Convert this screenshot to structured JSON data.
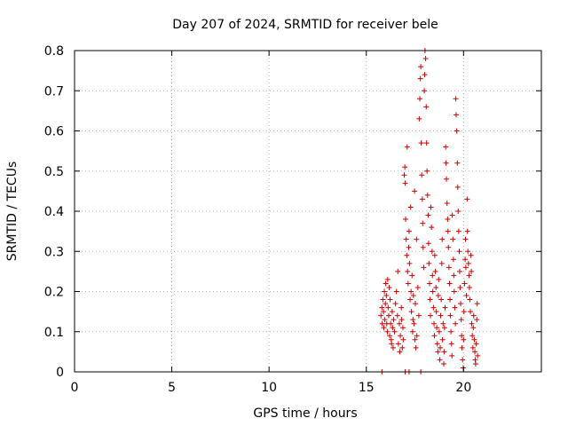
{
  "chart_data": {
    "type": "scatter",
    "title": "Day 207 of 2024, SRMTID for receiver bele",
    "xlabel": "GPS time / hours",
    "ylabel": "SRMTID / TECUs",
    "xlim": [
      0,
      24
    ],
    "ylim": [
      0,
      0.8
    ],
    "xticks": [
      0,
      5,
      10,
      15,
      20
    ],
    "xtick_labels": [
      "0",
      "5",
      "10",
      "15",
      "20"
    ],
    "yticks": [
      0,
      0.1,
      0.2,
      0.3,
      0.4,
      0.5,
      0.6,
      0.7,
      0.8
    ],
    "ytick_labels": [
      "0",
      "0.1",
      "0.2",
      "0.3",
      "0.4",
      "0.5",
      "0.6",
      "0.7",
      "0.8"
    ],
    "grid": true,
    "marker": "+",
    "color": "#cc0000",
    "series": [
      {
        "name": "SRMTID",
        "points": [
          [
            15.75,
            0.14
          ],
          [
            15.8,
            0.16
          ],
          [
            15.82,
            0.12
          ],
          [
            15.85,
            0.18
          ],
          [
            15.88,
            0.15
          ],
          [
            15.9,
            0.11
          ],
          [
            15.93,
            0.2
          ],
          [
            15.95,
            0.13
          ],
          [
            15.98,
            0.17
          ],
          [
            16.0,
            0.22
          ],
          [
            16.03,
            0.19
          ],
          [
            16.05,
            0.12
          ],
          [
            16.08,
            0.1
          ],
          [
            16.1,
            0.23
          ],
          [
            16.12,
            0.16
          ],
          [
            16.15,
            0.14
          ],
          [
            16.18,
            0.21
          ],
          [
            16.2,
            0.09
          ],
          [
            16.22,
            0.18
          ],
          [
            16.25,
            0.12
          ],
          [
            16.28,
            0.08
          ],
          [
            16.3,
            0.07
          ],
          [
            16.33,
            0.15
          ],
          [
            16.35,
            0.11
          ],
          [
            16.38,
            0.06
          ],
          [
            16.4,
            0.13
          ],
          [
            16.45,
            0.1
          ],
          [
            16.5,
            0.17
          ],
          [
            16.55,
            0.2
          ],
          [
            16.6,
            0.14
          ],
          [
            16.62,
            0.25
          ],
          [
            16.65,
            0.07
          ],
          [
            16.7,
            0.12
          ],
          [
            16.72,
            0.05
          ],
          [
            16.75,
            0.09
          ],
          [
            16.8,
            0.16
          ],
          [
            16.82,
            0.13
          ],
          [
            16.85,
            0.06
          ],
          [
            16.88,
            0.11
          ],
          [
            16.9,
            0.08
          ],
          [
            16.95,
            0.49
          ],
          [
            16.98,
            0.51
          ],
          [
            17.0,
            0.47
          ],
          [
            17.02,
            0.38
          ],
          [
            17.05,
            0.33
          ],
          [
            17.08,
            0.29
          ],
          [
            17.1,
            0.56
          ],
          [
            17.12,
            0.25
          ],
          [
            17.15,
            0.22
          ],
          [
            17.18,
            0.31
          ],
          [
            17.2,
            0.35
          ],
          [
            17.22,
            0.27
          ],
          [
            17.25,
            0.18
          ],
          [
            17.28,
            0.41
          ],
          [
            17.3,
            0.2
          ],
          [
            17.32,
            0.15
          ],
          [
            17.35,
            0.24
          ],
          [
            17.38,
            0.1
          ],
          [
            17.4,
            0.13
          ],
          [
            17.42,
            0.19
          ],
          [
            17.45,
            0.12
          ],
          [
            17.48,
            0.45
          ],
          [
            17.5,
            0.08
          ],
          [
            17.52,
            0.17
          ],
          [
            17.55,
            0.06
          ],
          [
            17.58,
            0.33
          ],
          [
            17.6,
            0.09
          ],
          [
            17.65,
            0.21
          ],
          [
            17.7,
            0.14
          ],
          [
            17.72,
            0.63
          ],
          [
            17.75,
            0.68
          ],
          [
            17.78,
            0.73
          ],
          [
            17.8,
            0.76
          ],
          [
            17.82,
            0.57
          ],
          [
            17.85,
            0.49
          ],
          [
            17.88,
            0.43
          ],
          [
            17.9,
            0.37
          ],
          [
            17.92,
            0.31
          ],
          [
            17.95,
            0.26
          ],
          [
            17.98,
            0.7
          ],
          [
            18.0,
            0.74
          ],
          [
            18.02,
            0.8
          ],
          [
            18.05,
            0.78
          ],
          [
            18.08,
            0.66
          ],
          [
            18.1,
            0.57
          ],
          [
            18.12,
            0.5
          ],
          [
            18.15,
            0.44
          ],
          [
            18.18,
            0.39
          ],
          [
            18.2,
            0.32
          ],
          [
            18.22,
            0.27
          ],
          [
            18.25,
            0.22
          ],
          [
            18.28,
            0.18
          ],
          [
            18.3,
            0.14
          ],
          [
            18.32,
            0.41
          ],
          [
            18.35,
            0.36
          ],
          [
            18.38,
            0.3
          ],
          [
            18.4,
            0.24
          ],
          [
            18.42,
            0.2
          ],
          [
            18.45,
            0.16
          ],
          [
            18.48,
            0.12
          ],
          [
            18.5,
            0.09
          ],
          [
            18.52,
            0.29
          ],
          [
            18.55,
            0.25
          ],
          [
            18.58,
            0.21
          ],
          [
            18.6,
            0.15
          ],
          [
            18.62,
            0.11
          ],
          [
            18.65,
            0.07
          ],
          [
            18.68,
            0.05
          ],
          [
            18.7,
            0.19
          ],
          [
            18.72,
            0.23
          ],
          [
            18.75,
            0.1
          ],
          [
            18.78,
            0.03
          ],
          [
            18.8,
            0.06
          ],
          [
            18.82,
            0.14
          ],
          [
            18.85,
            0.18
          ],
          [
            18.88,
            0.27
          ],
          [
            18.9,
            0.33
          ],
          [
            18.92,
            0.08
          ],
          [
            18.95,
            0.12
          ],
          [
            18.98,
            0.02
          ],
          [
            19.0,
            0.05
          ],
          [
            19.02,
            0.11
          ],
          [
            19.05,
            0.16
          ],
          [
            19.08,
            0.56
          ],
          [
            19.1,
            0.52
          ],
          [
            19.12,
            0.48
          ],
          [
            19.15,
            0.42
          ],
          [
            19.18,
            0.38
          ],
          [
            19.2,
            0.35
          ],
          [
            19.22,
            0.31
          ],
          [
            19.25,
            0.26
          ],
          [
            19.28,
            0.22
          ],
          [
            19.3,
            0.18
          ],
          [
            19.32,
            0.14
          ],
          [
            19.35,
            0.1
          ],
          [
            19.38,
            0.07
          ],
          [
            19.4,
            0.04
          ],
          [
            19.42,
            0.39
          ],
          [
            19.45,
            0.33
          ],
          [
            19.48,
            0.28
          ],
          [
            19.5,
            0.24
          ],
          [
            19.52,
            0.2
          ],
          [
            19.55,
            0.16
          ],
          [
            19.58,
            0.12
          ],
          [
            19.6,
            0.68
          ],
          [
            19.62,
            0.64
          ],
          [
            19.65,
            0.6
          ],
          [
            19.68,
            0.52
          ],
          [
            19.7,
            0.46
          ],
          [
            19.72,
            0.4
          ],
          [
            19.75,
            0.35
          ],
          [
            19.78,
            0.3
          ],
          [
            19.8,
            0.25
          ],
          [
            19.82,
            0.21
          ],
          [
            19.85,
            0.17
          ],
          [
            19.88,
            0.13
          ],
          [
            19.9,
            0.09
          ],
          [
            19.92,
            0.06
          ],
          [
            19.95,
            0.03
          ],
          [
            19.98,
            0.01
          ],
          [
            20.0,
            0.08
          ],
          [
            20.02,
            0.15
          ],
          [
            20.05,
            0.22
          ],
          [
            20.08,
            0.28
          ],
          [
            20.1,
            0.33
          ],
          [
            20.12,
            0.26
          ],
          [
            20.15,
            0.19
          ],
          [
            20.18,
            0.43
          ],
          [
            20.2,
            0.35
          ],
          [
            20.22,
            0.3
          ],
          [
            20.25,
            0.27
          ],
          [
            20.28,
            0.24
          ],
          [
            20.3,
            0.21
          ],
          [
            20.32,
            0.18
          ],
          [
            20.35,
            0.15
          ],
          [
            20.38,
            0.29
          ],
          [
            20.4,
            0.25
          ],
          [
            20.42,
            0.12
          ],
          [
            20.45,
            0.09
          ],
          [
            20.48,
            0.06
          ],
          [
            20.5,
            0.11
          ],
          [
            20.52,
            0.14
          ],
          [
            20.55,
            0.08
          ],
          [
            20.58,
            0.05
          ],
          [
            20.6,
            0.03
          ],
          [
            20.62,
            0.02
          ],
          [
            20.65,
            0.07
          ],
          [
            20.68,
            0.13
          ],
          [
            20.7,
            0.17
          ],
          [
            20.72,
            0.04
          ],
          [
            15.8,
            0.0
          ],
          [
            17.0,
            0.0
          ],
          [
            17.8,
            0.0
          ],
          [
            17.2,
            0.0
          ]
        ]
      }
    ]
  }
}
